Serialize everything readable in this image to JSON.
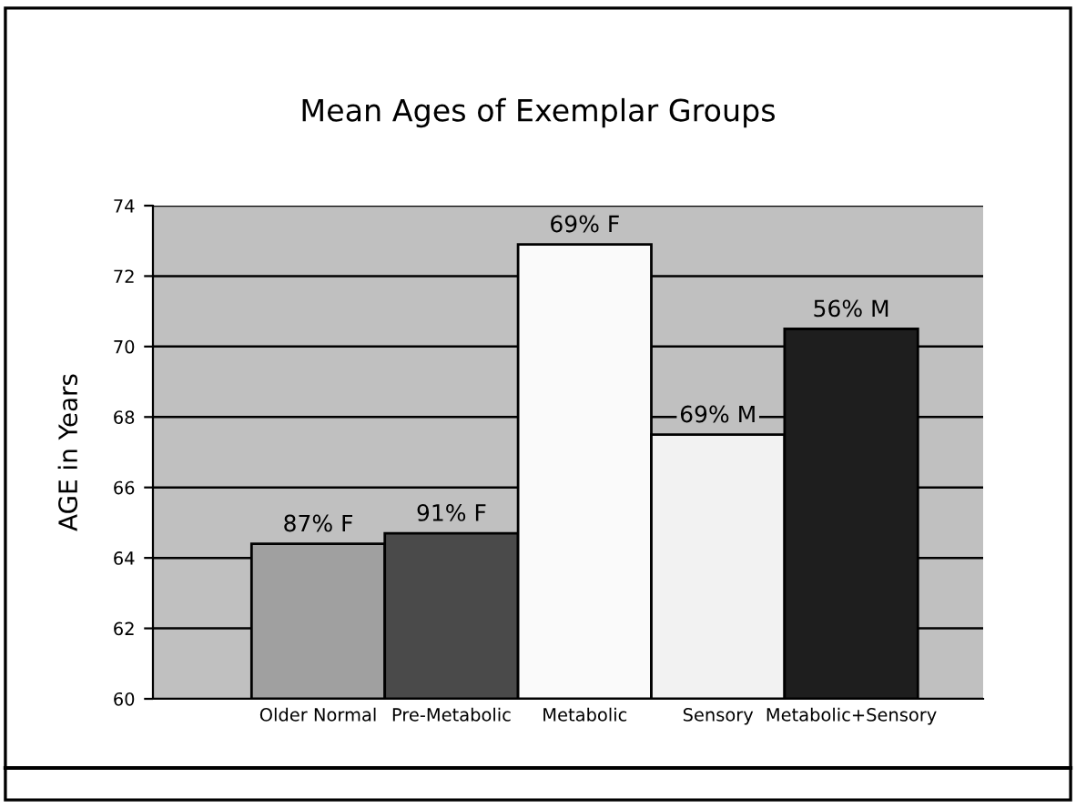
{
  "chart_data": {
    "type": "bar",
    "title": "Mean Ages of Exemplar Groups",
    "ylabel": "AGE in Years",
    "categories": [
      "Older Normal",
      "Pre-Metabolic",
      "Metabolic",
      "Sensory",
      "Metabolic+Sensory"
    ],
    "values": [
      64.4,
      64.7,
      72.9,
      67.5,
      70.5
    ],
    "colors": [
      "#a0a0a0",
      "#4a4a4a",
      "#fafafa",
      "#f2f2f2",
      "#1e1e1e"
    ],
    "annotations": [
      {
        "text": "87% F",
        "x": "Older Normal",
        "y": 64.4
      },
      {
        "text": "91% F",
        "x": "Pre-Metabolic",
        "y": 64.7
      },
      {
        "text": "69% F",
        "x": "Metabolic",
        "y": 72.9
      },
      {
        "text": "69% M",
        "x": "Sensory",
        "y": 67.5
      },
      {
        "text": "56% M",
        "x": "Metabolic+Sensory",
        "y": 70.5
      }
    ],
    "ylim": [
      60,
      74
    ],
    "yticks": [
      60,
      62,
      64,
      66,
      68,
      70,
      72,
      74
    ],
    "grid": "y"
  }
}
